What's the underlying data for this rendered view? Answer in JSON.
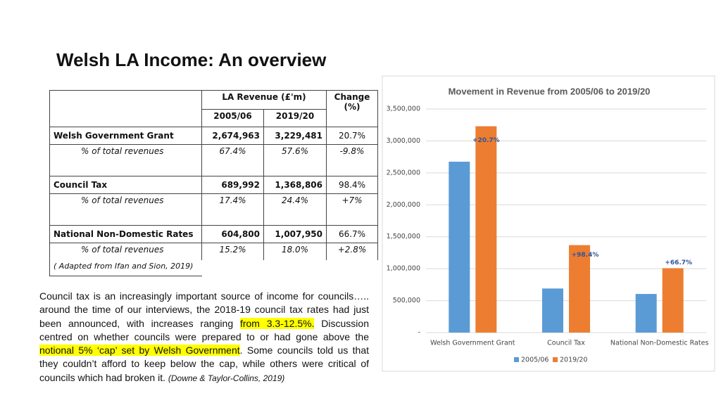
{
  "title": "Welsh LA Income: An overview",
  "table": {
    "header": {
      "group": "LA Revenue (£'m)",
      "change": "Change (%)",
      "years": [
        "2005/06",
        "2019/20"
      ]
    },
    "rows": [
      [
        "Welsh Government Grant",
        "2,674,963",
        "3,229,481",
        "20.7%"
      ],
      [
        "% of total revenues",
        "67.4%",
        "57.6%",
        "-9.8%"
      ],
      [
        "Council Tax",
        "689,992",
        "1,368,806",
        "98.4%"
      ],
      [
        "% of total revenues",
        "17.4%",
        "24.4%",
        "+7%"
      ],
      [
        "National Non-Domestic Rates",
        "604,800",
        "1,007,950",
        "66.7%"
      ],
      [
        "% of total revenues",
        "15.2%",
        "18.0%",
        "+2.8%"
      ]
    ],
    "source": "( Adapted from Ifan and Sion, 2019)"
  },
  "paragraph": {
    "segments": [
      {
        "text": "Council tax is an increasingly important source of income for councils….. around the time of our interviews, the 2018-19 council tax rates had just been announced, with increases ranging "
      },
      {
        "text": "from 3.3-12.5%.",
        "highlight": true
      },
      {
        "text": " Discussion centred on whether councils were prepared to or had gone above the "
      },
      {
        "text": "notional 5% ‘cap’ set by Welsh Government",
        "highlight": true
      },
      {
        "text": ". Some councils told us that they couldn’t afford to keep below the cap, while others were critical of councils which had broken it. "
      }
    ],
    "citation": "(Downe & Taylor-Collins, 2019)"
  },
  "chart_data": {
    "type": "bar",
    "title": "Movement in Revenue from 2005/06 to 2019/20",
    "categories": [
      "Welsh Government Grant",
      "Council Tax",
      "National Non-Domestic Rates"
    ],
    "series": [
      {
        "name": "2005/06",
        "color": "#5b9bd5",
        "values": [
          2674963,
          689992,
          604800
        ]
      },
      {
        "name": "2019/20",
        "color": "#ed7d31",
        "values": [
          3229481,
          1368806,
          1007950
        ],
        "annotations": [
          "+20.7%",
          "+98.4%",
          "+66.7%"
        ]
      }
    ],
    "ylim": [
      0,
      3500000
    ],
    "yticks": [
      {
        "value": 0,
        "label": "-"
      },
      {
        "value": 500000,
        "label": "500,000"
      },
      {
        "value": 1000000,
        "label": "1,000,000"
      },
      {
        "value": 1500000,
        "label": "1,500,000"
      },
      {
        "value": 2000000,
        "label": "2,000,000"
      },
      {
        "value": 2500000,
        "label": "2,500,000"
      },
      {
        "value": 3000000,
        "label": "3,000,000"
      },
      {
        "value": 3500000,
        "label": "3,500,000"
      }
    ],
    "grid": true,
    "legend": "bottom"
  }
}
